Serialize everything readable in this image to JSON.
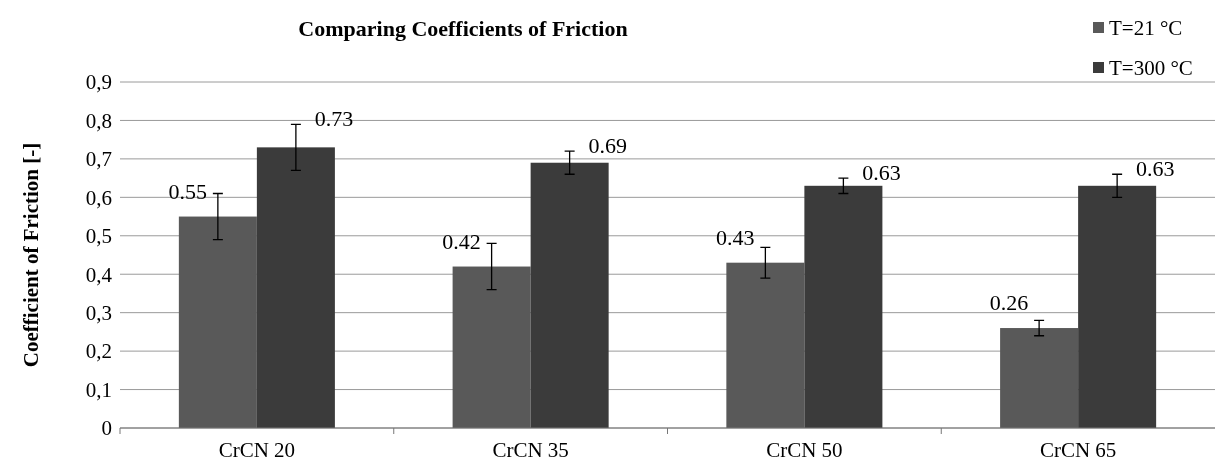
{
  "chart_data": {
    "type": "bar",
    "title": "Comparing Coefficients of Friction",
    "ylabel": "Coefficient of Friction [-]",
    "categories": [
      "CrCN 20",
      "CrCN 35",
      "CrCN 50",
      "CrCN 65"
    ],
    "series": [
      {
        "name": "T=21 °C",
        "color": "#595959",
        "values": [
          0.55,
          0.42,
          0.43,
          0.26
        ],
        "errors": [
          0.06,
          0.06,
          0.04,
          0.02
        ]
      },
      {
        "name": "T=300 °C",
        "color": "#3b3b3b",
        "values": [
          0.73,
          0.69,
          0.63,
          0.63
        ],
        "errors": [
          0.06,
          0.03,
          0.02,
          0.03
        ]
      }
    ],
    "ylim": [
      0,
      0.9
    ],
    "yticks": [
      {
        "value": 0,
        "label": "0"
      },
      {
        "value": 0.1,
        "label": "0,1"
      },
      {
        "value": 0.2,
        "label": "0,2"
      },
      {
        "value": 0.3,
        "label": "0,3"
      },
      {
        "value": 0.4,
        "label": "0,4"
      },
      {
        "value": 0.5,
        "label": "0,5"
      },
      {
        "value": 0.6,
        "label": "0,6"
      },
      {
        "value": 0.7,
        "label": "0,7"
      },
      {
        "value": 0.8,
        "label": "0,8"
      },
      {
        "value": 0.9,
        "label": "0,9"
      }
    ],
    "grid": "y",
    "legend": "top right",
    "data_labels": true
  }
}
